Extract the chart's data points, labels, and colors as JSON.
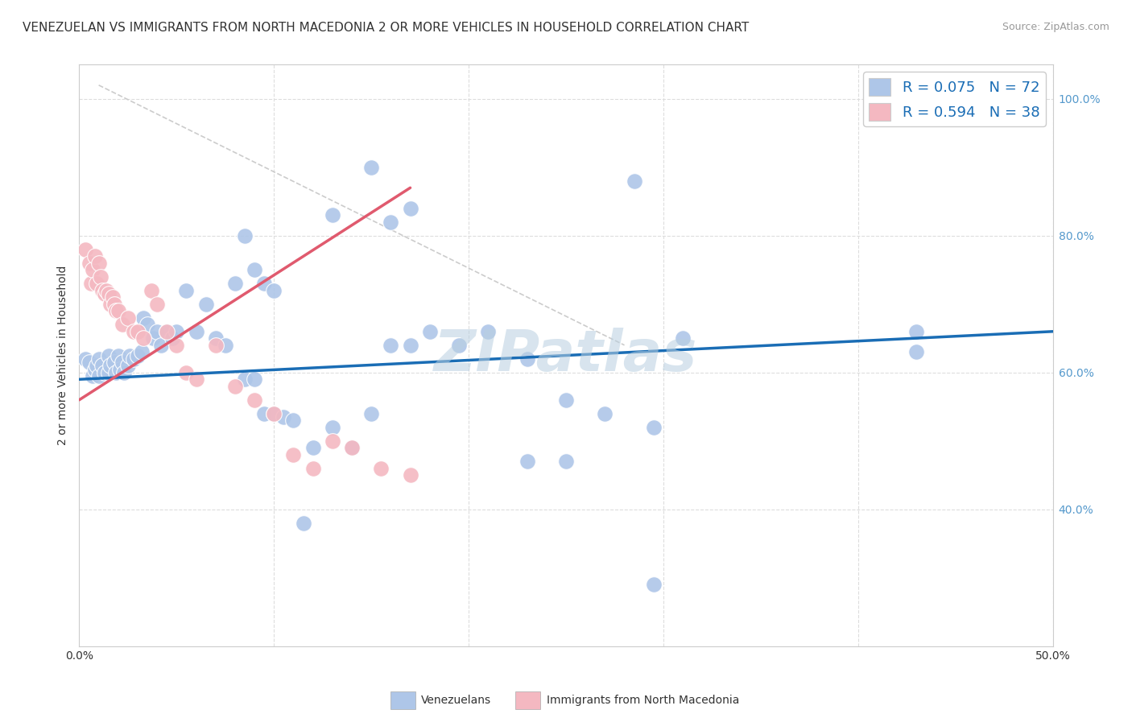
{
  "title": "VENEZUELAN VS IMMIGRANTS FROM NORTH MACEDONIA 2 OR MORE VEHICLES IN HOUSEHOLD CORRELATION CHART",
  "source": "Source: ZipAtlas.com",
  "ylabel": "2 or more Vehicles in Household",
  "xlim": [
    0.0,
    0.5
  ],
  "ylim": [
    0.2,
    1.05
  ],
  "xtick_positions": [
    0.0,
    0.1,
    0.2,
    0.3,
    0.4,
    0.5
  ],
  "xtick_labels": [
    "0.0%",
    "",
    "",
    "",
    "",
    "50.0%"
  ],
  "ytick_positions": [
    0.4,
    0.6,
    0.8,
    1.0
  ],
  "ytick_labels": [
    "40.0%",
    "60.0%",
    "80.0%",
    "100.0%"
  ],
  "watermark": "ZIPatlas",
  "blue_scatter_x": [
    0.003,
    0.005,
    0.007,
    0.008,
    0.009,
    0.01,
    0.01,
    0.012,
    0.013,
    0.015,
    0.015,
    0.016,
    0.018,
    0.019,
    0.02,
    0.021,
    0.022,
    0.023,
    0.025,
    0.026,
    0.028,
    0.03,
    0.032,
    0.033,
    0.035,
    0.038,
    0.04,
    0.042,
    0.045,
    0.048,
    0.05,
    0.055,
    0.06,
    0.065,
    0.07,
    0.075,
    0.08,
    0.085,
    0.09,
    0.095,
    0.1,
    0.105,
    0.11,
    0.115,
    0.12,
    0.13,
    0.14,
    0.15,
    0.16,
    0.17,
    0.18,
    0.195,
    0.21,
    0.23,
    0.25,
    0.27,
    0.295,
    0.31,
    0.25,
    0.43,
    0.43,
    0.16,
    0.17,
    0.085,
    0.09,
    0.095,
    0.1,
    0.13,
    0.15,
    0.23,
    0.295,
    0.285
  ],
  "blue_scatter_y": [
    0.62,
    0.615,
    0.595,
    0.605,
    0.61,
    0.595,
    0.62,
    0.61,
    0.6,
    0.6,
    0.625,
    0.61,
    0.615,
    0.6,
    0.625,
    0.605,
    0.615,
    0.6,
    0.61,
    0.625,
    0.62,
    0.625,
    0.63,
    0.68,
    0.67,
    0.65,
    0.66,
    0.64,
    0.66,
    0.65,
    0.66,
    0.72,
    0.66,
    0.7,
    0.65,
    0.64,
    0.73,
    0.59,
    0.59,
    0.54,
    0.54,
    0.535,
    0.53,
    0.38,
    0.49,
    0.52,
    0.49,
    0.54,
    0.64,
    0.64,
    0.66,
    0.64,
    0.66,
    0.62,
    0.56,
    0.54,
    0.52,
    0.65,
    0.47,
    0.66,
    0.63,
    0.82,
    0.84,
    0.8,
    0.75,
    0.73,
    0.72,
    0.83,
    0.9,
    0.47,
    0.29,
    0.88
  ],
  "pink_scatter_x": [
    0.003,
    0.005,
    0.006,
    0.007,
    0.008,
    0.009,
    0.01,
    0.011,
    0.012,
    0.013,
    0.014,
    0.015,
    0.016,
    0.017,
    0.018,
    0.019,
    0.02,
    0.022,
    0.025,
    0.028,
    0.03,
    0.033,
    0.037,
    0.04,
    0.045,
    0.05,
    0.055,
    0.06,
    0.07,
    0.08,
    0.09,
    0.1,
    0.11,
    0.12,
    0.13,
    0.14,
    0.155,
    0.17
  ],
  "pink_scatter_y": [
    0.78,
    0.76,
    0.73,
    0.75,
    0.77,
    0.73,
    0.76,
    0.74,
    0.72,
    0.715,
    0.72,
    0.715,
    0.7,
    0.71,
    0.7,
    0.69,
    0.69,
    0.67,
    0.68,
    0.66,
    0.66,
    0.65,
    0.72,
    0.7,
    0.66,
    0.64,
    0.6,
    0.59,
    0.64,
    0.58,
    0.56,
    0.54,
    0.48,
    0.46,
    0.5,
    0.49,
    0.46,
    0.45
  ],
  "blue_line_x": [
    0.0,
    0.5
  ],
  "blue_line_y": [
    0.59,
    0.66
  ],
  "pink_line_x": [
    0.0,
    0.17
  ],
  "pink_line_y": [
    0.56,
    0.87
  ],
  "gray_line_x": [
    0.01,
    0.28
  ],
  "gray_line_y": [
    1.02,
    0.64
  ],
  "blue_scatter_color": "#aec6e8",
  "pink_scatter_color": "#f4b8c1",
  "blue_line_color": "#1a6db5",
  "pink_line_color": "#e05a6e",
  "gray_line_color": "#cccccc",
  "grid_color": "#dddddd",
  "background_color": "#ffffff",
  "title_fontsize": 11,
  "axis_label_fontsize": 10,
  "tick_fontsize": 10,
  "legend_fontsize": 13,
  "source_fontsize": 9,
  "watermark_fontsize": 52,
  "watermark_color": "#b8cfe0",
  "watermark_alpha": 0.55,
  "legend_label_blue": "R = 0.075   N = 72",
  "legend_label_pink": "R = 0.594   N = 38",
  "bottom_legend_blue": "Venezuelans",
  "bottom_legend_pink": "Immigrants from North Macedonia"
}
